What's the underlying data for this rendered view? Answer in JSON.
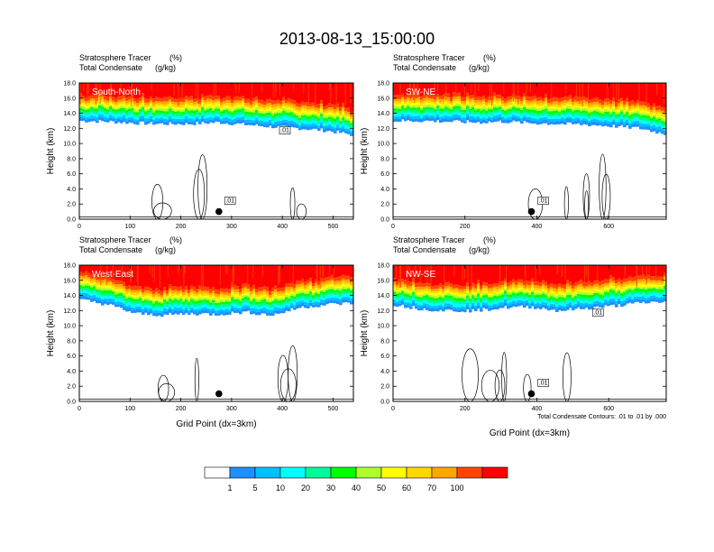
{
  "chart_data": {
    "type": "heatmap",
    "title": "2013-08-13_15:00:00",
    "colorbar": {
      "labels": [
        "1",
        "5",
        "10",
        "20",
        "30",
        "40",
        "50",
        "60",
        "70",
        "100"
      ],
      "colors": [
        "#ffffff",
        "#1e90ff",
        "#00bfff",
        "#00ffff",
        "#00fa9a",
        "#00ff00",
        "#adff2f",
        "#ffff00",
        "#ffd700",
        "#ffa500",
        "#ff4500",
        "#ff0000"
      ]
    },
    "footnote": "Total Condensate Contours: .01 to .01 by .000",
    "panels": [
      {
        "name": "South-North",
        "subtitle_left": "Stratosphere Tracer",
        "subtitle_left_units": "(%)",
        "subtitle_left2": "Total Condensate",
        "subtitle_left2_units": "(g/kg)",
        "ylabel": "Height (km)",
        "xlabel": "",
        "ylim": [
          0,
          18
        ],
        "yticks": [
          "0.0",
          "2.0",
          "4.0",
          "6.0",
          "8.0",
          "10.0",
          "12.0",
          "14.0",
          "16.0",
          "18.0"
        ],
        "xlim": [
          0,
          540
        ],
        "xticks": [
          0,
          100,
          200,
          300,
          400,
          500
        ],
        "tropopause_km": [
          13,
          12.9,
          12.7,
          12.6,
          12.6,
          12.8,
          12.5,
          12.2,
          12.0,
          11.7,
          11.1
        ],
        "marker_x": 275,
        "marker_y_km": 1.0,
        "contour_labels": [
          ".01",
          ".01"
        ]
      },
      {
        "name": "SW-NE",
        "subtitle_left": "Stratosphere Tracer",
        "subtitle_left_units": "(%)",
        "subtitle_left2": "Total Condensate",
        "subtitle_left2_units": "(g/kg)",
        "ylabel": "Height (km)",
        "xlabel": "",
        "ylim": [
          0,
          18
        ],
        "yticks": [
          "0.0",
          "2.0",
          "4.0",
          "6.0",
          "8.0",
          "10.0",
          "12.0",
          "14.0",
          "16.0",
          "18.0"
        ],
        "xlim": [
          0,
          760
        ],
        "xticks": [
          0,
          200,
          400,
          600
        ],
        "tropopause_km": [
          13,
          13,
          12.9,
          12.8,
          12.9,
          12.7,
          12.6,
          12.5,
          12.3,
          12.0,
          11.2
        ],
        "marker_x": 385,
        "marker_y_km": 1.0,
        "contour_labels": [
          ".01"
        ]
      },
      {
        "name": "West-East",
        "subtitle_left": "Stratosphere Tracer",
        "subtitle_left_units": "(%)",
        "subtitle_left2": "Total Condensate",
        "subtitle_left2_units": "(g/kg)",
        "ylabel": "Height (km)",
        "xlabel": "Grid Point (dx=3km)",
        "ylim": [
          0,
          18
        ],
        "yticks": [
          "0.0",
          "2.0",
          "4.0",
          "6.0",
          "8.0",
          "10.0",
          "12.0",
          "14.0",
          "16.0",
          "18.0"
        ],
        "xlim": [
          0,
          540
        ],
        "xticks": [
          0,
          100,
          200,
          300,
          400,
          500
        ],
        "tropopause_km": [
          13.4,
          12.8,
          11.6,
          11.4,
          11.6,
          11.5,
          11.8,
          11.4,
          12.4,
          12.8,
          13.0
        ],
        "marker_x": 275,
        "marker_y_km": 1.0,
        "contour_labels": []
      },
      {
        "name": "NW-SE",
        "subtitle_left": "Stratosphere Tracer",
        "subtitle_left_units": "(%)",
        "subtitle_left2": "Total Condensate",
        "subtitle_left2_units": "(g/kg)",
        "ylabel": "",
        "xlabel": "Grid Point (dx=3km)",
        "ylim": [
          0,
          18
        ],
        "yticks": [
          "0.0",
          "2.0",
          "4.0",
          "6.0",
          "8.0",
          "10.0",
          "12.0",
          "14.0",
          "16.0",
          "18.0"
        ],
        "xlim": [
          0,
          760
        ],
        "xticks": [
          0,
          200,
          400,
          600
        ],
        "tropopause_km": [
          12.8,
          12.2,
          12.0,
          12.0,
          12.4,
          12.5,
          12.0,
          12.3,
          12.6,
          13.0,
          13.2
        ],
        "marker_x": 385,
        "marker_y_km": 1.0,
        "contour_labels": [
          ".01",
          ".01"
        ]
      }
    ]
  }
}
